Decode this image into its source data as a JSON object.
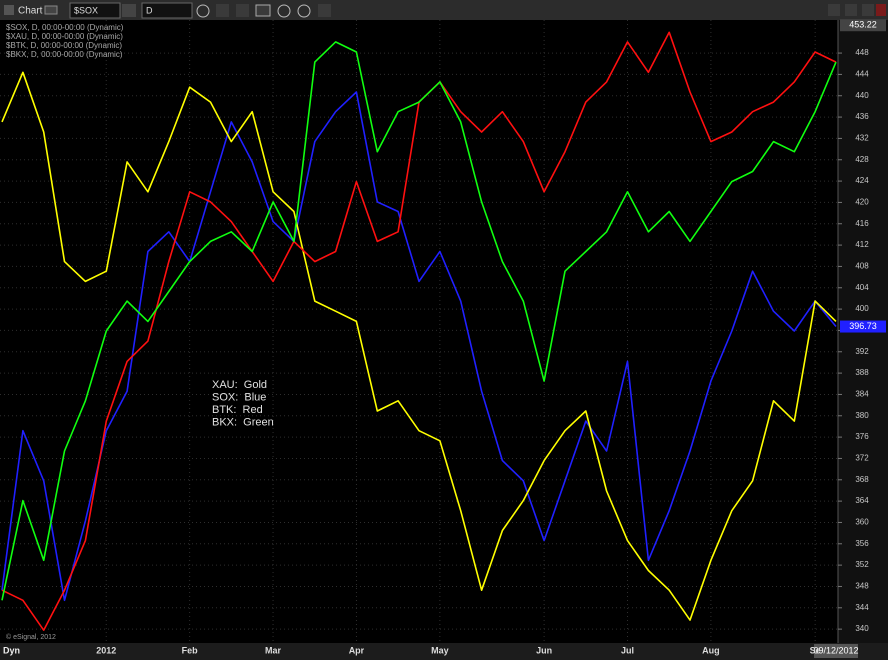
{
  "toolbar": {
    "title": "Chart",
    "symbol": "$SOX",
    "interval": "D"
  },
  "footer": {
    "mode": "Dyn",
    "copyright": "© eSignal, 2012",
    "cursor_date": "09/12/2012"
  },
  "chart_data": {
    "type": "line",
    "categories": [
      null,
      null,
      null,
      null,
      null,
      "2012",
      null,
      null,
      null,
      "Feb",
      null,
      null,
      null,
      "Mar",
      null,
      null,
      null,
      "Apr",
      null,
      null,
      null,
      "May",
      null,
      null,
      null,
      null,
      "Jun",
      null,
      null,
      null,
      "Jul",
      null,
      null,
      null,
      "Aug",
      null,
      null,
      null,
      null,
      "Se",
      null
    ],
    "series": [
      {
        "name": "$SOX, D, 00:00-00:00 (Dynamic)",
        "color": "#2020ff",
        "values": [
          347.3,
          377.2,
          367.8,
          345.4,
          360.3,
          377.2,
          384.6,
          410.8,
          414.5,
          408.9,
          422,
          435.1,
          427.6,
          416.4,
          412.7,
          431.4,
          437,
          440.7,
          420.1,
          418.3,
          405.2,
          410.8,
          401.5,
          384.6,
          371.6,
          367.8,
          356.6,
          367.8,
          379,
          373.4,
          390.2,
          352.9,
          362.2,
          373.4,
          386.5,
          395.9,
          407.1,
          399.6,
          395.9,
          401.5,
          396.73
        ]
      },
      {
        "name": "$XAU, D, 00:00-00:00 (Dynamic)",
        "color": "#ffff00",
        "values": [
          435.1,
          444.4,
          433.2,
          408.9,
          405.2,
          407.1,
          427.6,
          422,
          431.4,
          441.6,
          438.8,
          431.4,
          437,
          422,
          418.3,
          401.5,
          399.6,
          397.7,
          380.9,
          382.8,
          377.2,
          375.3,
          362.2,
          347.3,
          358.5,
          364.1,
          371.6,
          377.2,
          380.9,
          365.9,
          356.6,
          351,
          347.3,
          341.7,
          352.9,
          362.2,
          367.8,
          382.8,
          379,
          401.5,
          397.7
        ]
      },
      {
        "name": "$BTK, D, 00:00-00:00 (Dynamic)",
        "color": "#ff1010",
        "values": [
          347.3,
          345.4,
          339.8,
          347.3,
          356.6,
          379,
          390.2,
          394,
          408.9,
          422,
          420.1,
          416.4,
          410.8,
          405.2,
          412.7,
          408.9,
          410.8,
          423.9,
          412.7,
          414.5,
          438.8,
          442.6,
          437,
          433.2,
          437,
          431.4,
          422,
          429.5,
          438.8,
          442.6,
          450.1,
          444.4,
          451.9,
          440.7,
          431.4,
          433.2,
          437,
          438.8,
          442.6,
          448.2,
          446.3
        ]
      },
      {
        "name": "$BKX, D, 00:00-00:00 (Dynamic)",
        "color": "#10ff10",
        "values": [
          345.4,
          364.1,
          352.9,
          373.4,
          382.8,
          395.9,
          401.5,
          397.7,
          403.3,
          408.9,
          412.7,
          414.5,
          410.8,
          420.1,
          412.7,
          446.3,
          450.1,
          448.2,
          429.5,
          437,
          438.8,
          442.6,
          435.1,
          420.1,
          408.9,
          401.5,
          386.5,
          407.1,
          410.8,
          414.5,
          422,
          414.5,
          418.3,
          412.7,
          418.3,
          423.9,
          425.8,
          431.4,
          429.5,
          437,
          446.3
        ]
      }
    ],
    "ylim": [
      337.4,
      454.2
    ],
    "yticks": [
      340,
      344,
      348,
      352,
      356,
      360,
      364,
      368,
      372,
      376,
      380,
      384,
      388,
      392,
      396,
      400,
      404,
      408,
      412,
      416,
      420,
      424,
      428,
      432,
      436,
      440,
      444,
      448
    ],
    "grid": true,
    "last_value_labels": [
      {
        "value": 453.22,
        "label": "453.22"
      },
      {
        "value": 396.73,
        "label": "396.73"
      }
    ],
    "annotations": [
      "XAU:  Gold",
      "SOX:  Blue",
      "BTK:  Red",
      "BKX:  Green"
    ]
  }
}
